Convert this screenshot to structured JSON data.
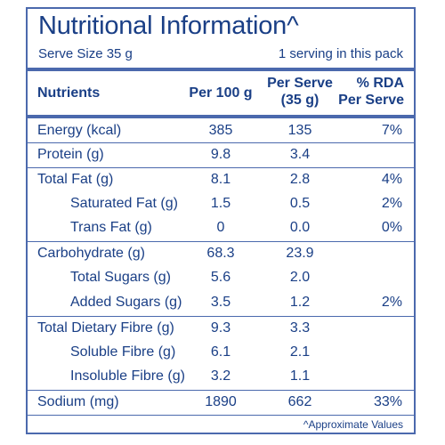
{
  "title": "Nutritional Information^",
  "serve_size": "Serve Size 35 g",
  "servings_per_pack": "1 serving in this pack",
  "headers": {
    "nutrients": "Nutrients",
    "per_100g": "Per 100 g",
    "per_serve_line1": "Per Serve",
    "per_serve_line2": "(35 g)",
    "rda_line1": "% RDA",
    "rda_line2": "Per Serve"
  },
  "rows": [
    {
      "name": "Energy (kcal)",
      "per_100g": "385",
      "per_serve": "135",
      "rda": "7%"
    },
    {
      "name": "Protein (g)",
      "per_100g": "9.8",
      "per_serve": "3.4",
      "rda": ""
    },
    {
      "name": "Total Fat (g)",
      "per_100g": "8.1",
      "per_serve": "2.8",
      "rda": "4%"
    },
    {
      "name": "Saturated Fat (g)",
      "per_100g": "1.5",
      "per_serve": "0.5",
      "rda": "2%"
    },
    {
      "name": "Trans Fat (g)",
      "per_100g": "0",
      "per_serve": "0.0",
      "rda": "0%"
    },
    {
      "name": "Carbohydrate (g)",
      "per_100g": "68.3",
      "per_serve": "23.9",
      "rda": ""
    },
    {
      "name": "Total Sugars (g)",
      "per_100g": "5.6",
      "per_serve": "2.0",
      "rda": ""
    },
    {
      "name": "Added Sugars (g)",
      "per_100g": "3.5",
      "per_serve": "1.2",
      "rda": "2%"
    },
    {
      "name": "Total Dietary Fibre (g)",
      "per_100g": "9.3",
      "per_serve": "3.3",
      "rda": ""
    },
    {
      "name": "Soluble Fibre (g)",
      "per_100g": "6.1",
      "per_serve": "2.1",
      "rda": ""
    },
    {
      "name": "Insoluble Fibre (g)",
      "per_100g": "3.2",
      "per_serve": "1.1",
      "rda": ""
    },
    {
      "name": "Sodium (mg)",
      "per_100g": "1890",
      "per_serve": "662",
      "rda": "33%"
    }
  ],
  "footnote": "^Approximate Values",
  "colors": {
    "text": "#1a3f86",
    "rules": "#4b69ad",
    "background": "#ffffff"
  }
}
